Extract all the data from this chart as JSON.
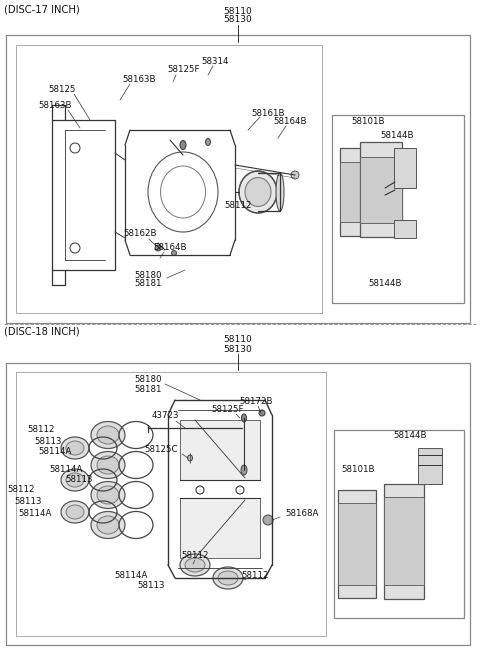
{
  "bg_color": "#ffffff",
  "border_color": "#666666",
  "text_color": "#111111",
  "lc": "#333333",
  "disc17_label": "(DISC-17 INCH)",
  "disc18_label": "(DISC-18 INCH)",
  "label1_17": "58110",
  "label2_17": "58130",
  "label1_18": "58110",
  "label2_18": "58130",
  "figsize": [
    4.8,
    6.55
  ],
  "dpi": 100
}
